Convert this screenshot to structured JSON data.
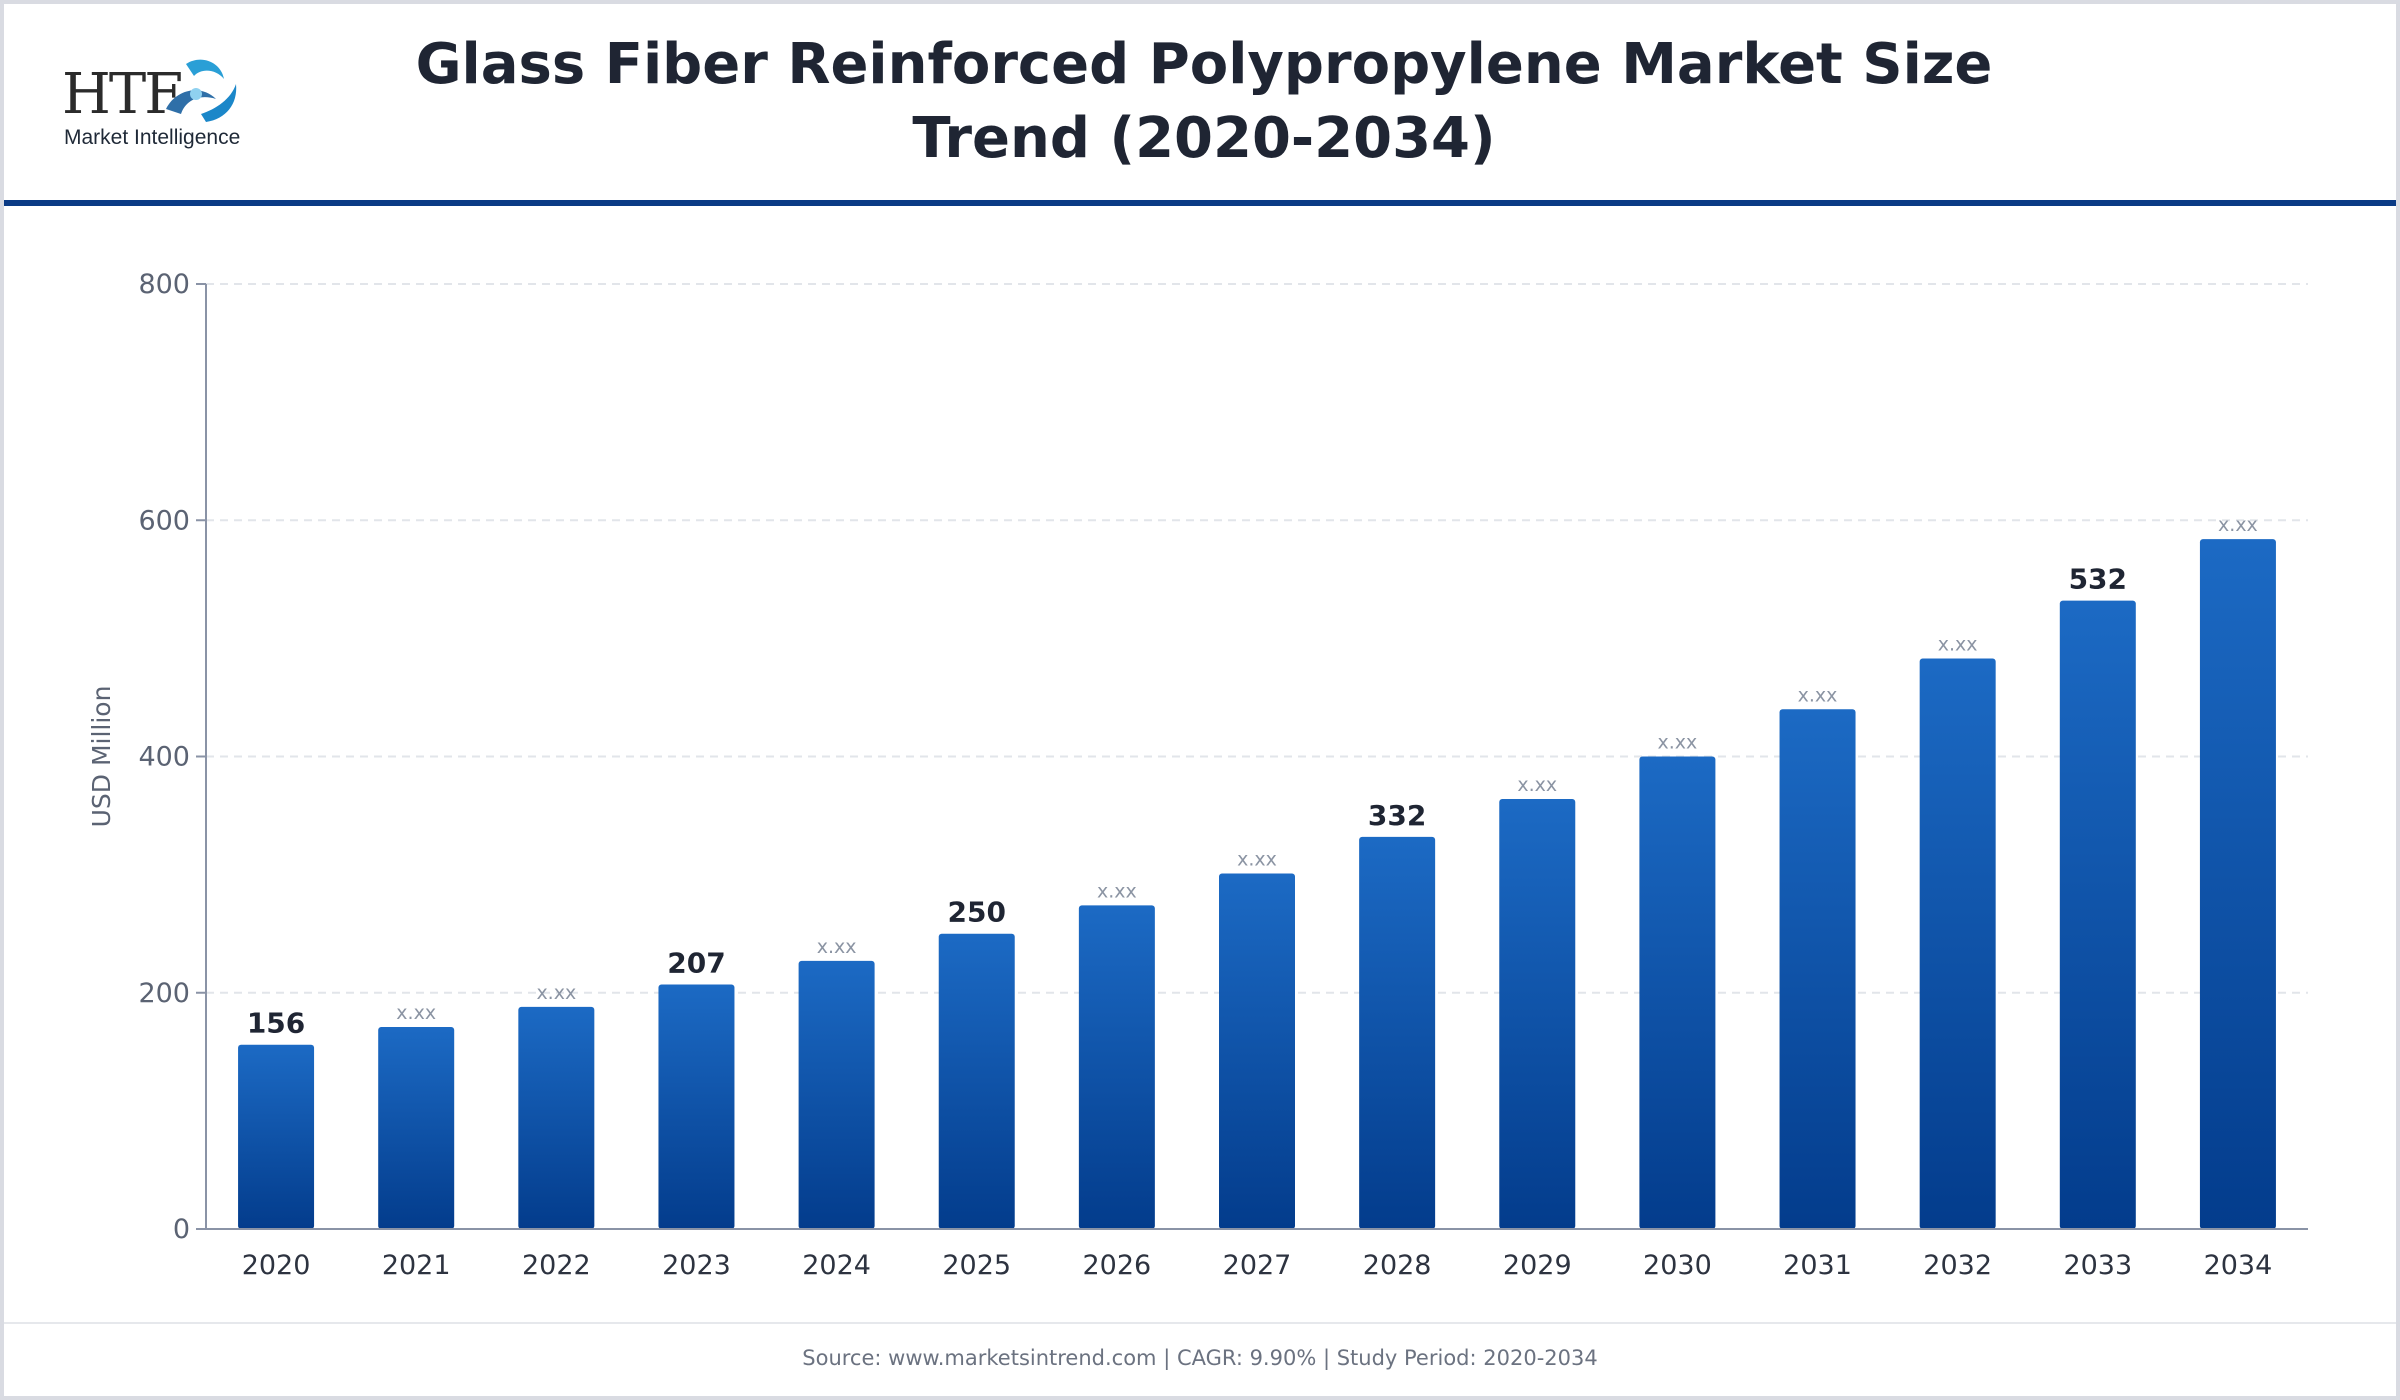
{
  "header": {
    "title_line1": "Glass Fiber Reinforced Polypropylene Market Size",
    "title_line2": "Trend (2020-2034)",
    "logo_text": "HTF",
    "logo_subtext": "Market Intelligence"
  },
  "footer": {
    "source_text": "Source: www.marketsintrend.com  |  CAGR: 9.90%  |  Study Period: 2020-2034"
  },
  "colors": {
    "bar_top": "#1c6ac4",
    "bar_bottom": "#033c8c",
    "label_dark": "#1f2533",
    "label_muted": "#8b94a3",
    "axis": "#8a93a6",
    "grid": "#e2e5ea",
    "tick_text": "#5b6373"
  },
  "chart_data": {
    "type": "bar",
    "categories": [
      "2020",
      "2021",
      "2022",
      "2023",
      "2024",
      "2025",
      "2026",
      "2027",
      "2028",
      "2029",
      "2030",
      "2031",
      "2032",
      "2033",
      "2034"
    ],
    "values": [
      156,
      171,
      188,
      207,
      227,
      250,
      274,
      301,
      332,
      364,
      400,
      440,
      483,
      532,
      584
    ],
    "value_labels": [
      "156",
      "x.xx",
      "x.xx",
      "207",
      "x.xx",
      "250",
      "x.xx",
      "x.xx",
      "332",
      "x.xx",
      "x.xx",
      "x.xx",
      "x.xx",
      "532",
      "x.xx"
    ],
    "highlighted": [
      true,
      false,
      false,
      true,
      false,
      true,
      false,
      false,
      true,
      false,
      false,
      false,
      false,
      true,
      false
    ],
    "ylabel": "USD Million",
    "ylim": [
      0,
      800
    ],
    "yticks": [
      0,
      200,
      400,
      600,
      800
    ],
    "grid": true,
    "legend": "none"
  }
}
